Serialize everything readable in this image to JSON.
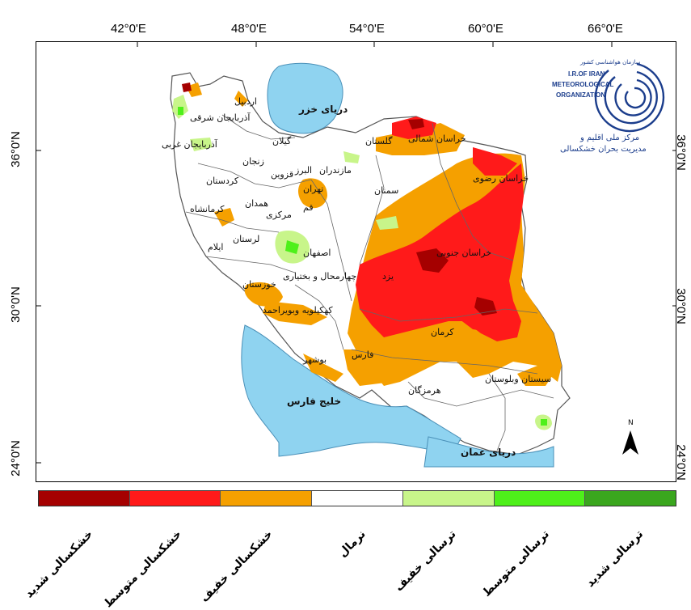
{
  "axes": {
    "longitudes": [
      "42°0'E",
      "48°0'E",
      "54°0'E",
      "60°0'E",
      "66°0'E"
    ],
    "latitudes": [
      "36°0'N",
      "30°0'N",
      "24°0'N"
    ]
  },
  "water_bodies": {
    "caspian": "دریای خزر",
    "persian_gulf": "خلیج فارس",
    "oman_sea": "دریای عمان"
  },
  "provinces": [
    "اردبیل",
    "آذربایجان شرقی",
    "آذربایجان غربی",
    "زنجان",
    "گیلان",
    "مازندران",
    "البرز",
    "قزوین",
    "گلستان",
    "خراسان شمالی",
    "خراسان رضوی",
    "سمنان",
    "تهران",
    "قم",
    "مرکزی",
    "کردستان",
    "همدان",
    "کرمانشاه",
    "لرستان",
    "ایلام",
    "اصفهان",
    "خوزستان",
    "چهارمحال و بختیاری",
    "یزد",
    "خراسان جنوبی",
    "کهکیلویه وبویراحمد",
    "بوشهر",
    "فارس",
    "کرمان",
    "هرمزگان",
    "سیستان وبلوستان"
  ],
  "north_arrow": "N",
  "logo": {
    "fa_top": "سازمان هواشناسی کشور",
    "en_line1": "I.R.OF IRAN",
    "en_line2": "METEOROLOGICAL",
    "en_line3": "ORGANIZATION",
    "fa_line1": "مرکز ملی اقلیم و",
    "fa_line2": "مدیریت بحران خشکسالی"
  },
  "legend": [
    {
      "label": "خشکسالی شدید",
      "color": "#a50000"
    },
    {
      "label": "خشکسالی متوسط",
      "color": "#ff1a1a"
    },
    {
      "label": "خشکسالی خفیف",
      "color": "#f5a000"
    },
    {
      "label": "نرمال",
      "color": "#ffffff"
    },
    {
      "label": "ترسالی خفیف",
      "color": "#c8f58a"
    },
    {
      "label": "ترسالی متوسط",
      "color": "#4ef01a"
    },
    {
      "label": "ترسالی شدید",
      "color": "#3aa61e"
    }
  ],
  "colors": {
    "water": "#8fd3f0",
    "border": "#555555",
    "logo_blue": "#1b3d8c"
  }
}
